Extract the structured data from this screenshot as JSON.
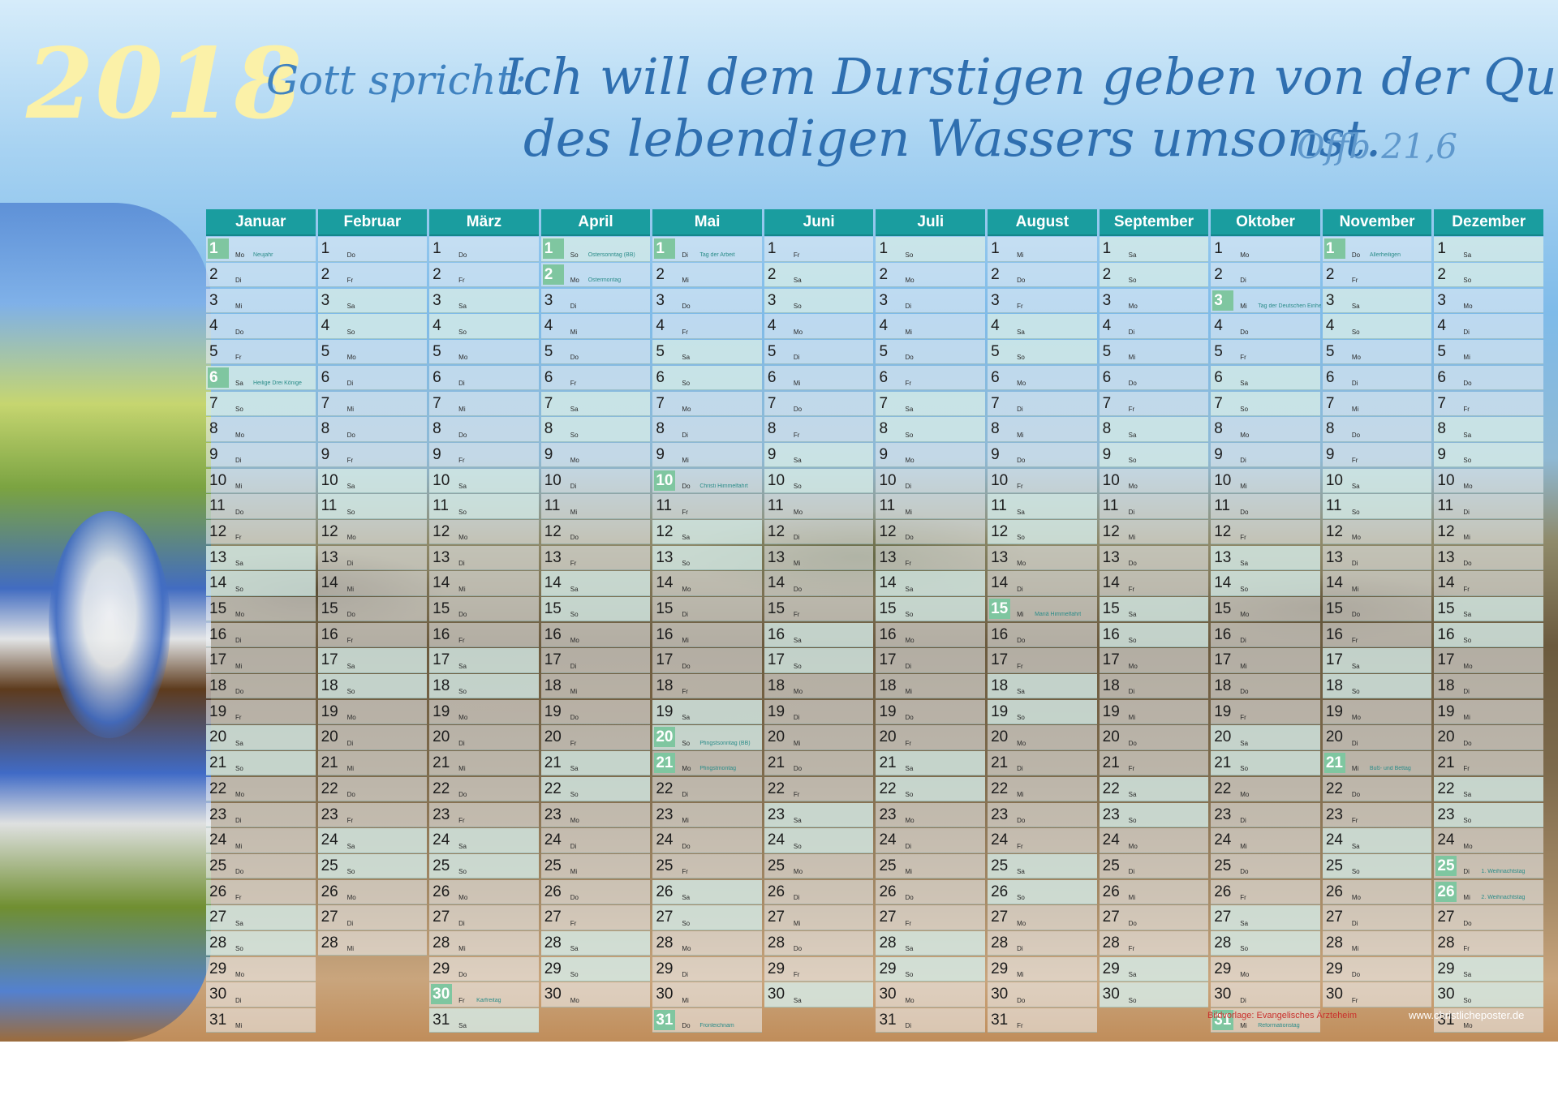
{
  "header": {
    "year": "2018",
    "verse_intro": "Gott spricht:",
    "verse_line1": "Ich will dem Durstigen geben von der Quelle",
    "verse_line2": "des lebendigen Wassers umsonst.",
    "verse_ref": "Offb 21,6"
  },
  "calendar": {
    "months": [
      {
        "name": "Januar",
        "days": 31,
        "start_weekday": 0,
        "holidays": {
          "1": "Neujahr",
          "6": "Heilige Drei Könige"
        }
      },
      {
        "name": "Februar",
        "days": 28,
        "start_weekday": 3,
        "holidays": {}
      },
      {
        "name": "März",
        "days": 31,
        "start_weekday": 3,
        "holidays": {
          "30": "Karfreitag"
        }
      },
      {
        "name": "April",
        "days": 30,
        "start_weekday": 6,
        "holidays": {
          "1": "Ostersonntag (BB)",
          "2": "Ostermontag"
        }
      },
      {
        "name": "Mai",
        "days": 31,
        "start_weekday": 1,
        "holidays": {
          "1": "Tag der Arbeit",
          "10": "Christi Himmelfahrt",
          "20": "Pfingstsonntag (BB)",
          "21": "Pfingstmontag",
          "31": "Fronleichnam"
        }
      },
      {
        "name": "Juni",
        "days": 30,
        "start_weekday": 4,
        "holidays": {}
      },
      {
        "name": "Juli",
        "days": 31,
        "start_weekday": 6,
        "holidays": {}
      },
      {
        "name": "August",
        "days": 31,
        "start_weekday": 2,
        "holidays": {
          "15": "Mariä Himmelfahrt"
        }
      },
      {
        "name": "September",
        "days": 30,
        "start_weekday": 5,
        "holidays": {}
      },
      {
        "name": "Oktober",
        "days": 31,
        "start_weekday": 0,
        "holidays": {
          "3": "Tag der Deutschen Einheit",
          "31": "Reformationstag"
        }
      },
      {
        "name": "November",
        "days": 30,
        "start_weekday": 3,
        "holidays": {
          "1": "Allerheiligen",
          "21": "Buß- und Bettag"
        }
      },
      {
        "name": "Dezember",
        "days": 31,
        "start_weekday": 5,
        "holidays": {
          "25": "1. Weihnachtstag",
          "26": "2. Weihnachtstag"
        }
      }
    ],
    "weekdays": [
      "Mo",
      "Di",
      "Mi",
      "Do",
      "Fr",
      "Sa",
      "So"
    ],
    "colors": {
      "header": "#1a9d9f",
      "holiday": "#7fc6a0",
      "weekend": "#d6ece8"
    }
  },
  "footer": {
    "left": "Bildvorlage: Evangelisches Ärzteheim",
    "right": "www.christlicheposter.de"
  }
}
